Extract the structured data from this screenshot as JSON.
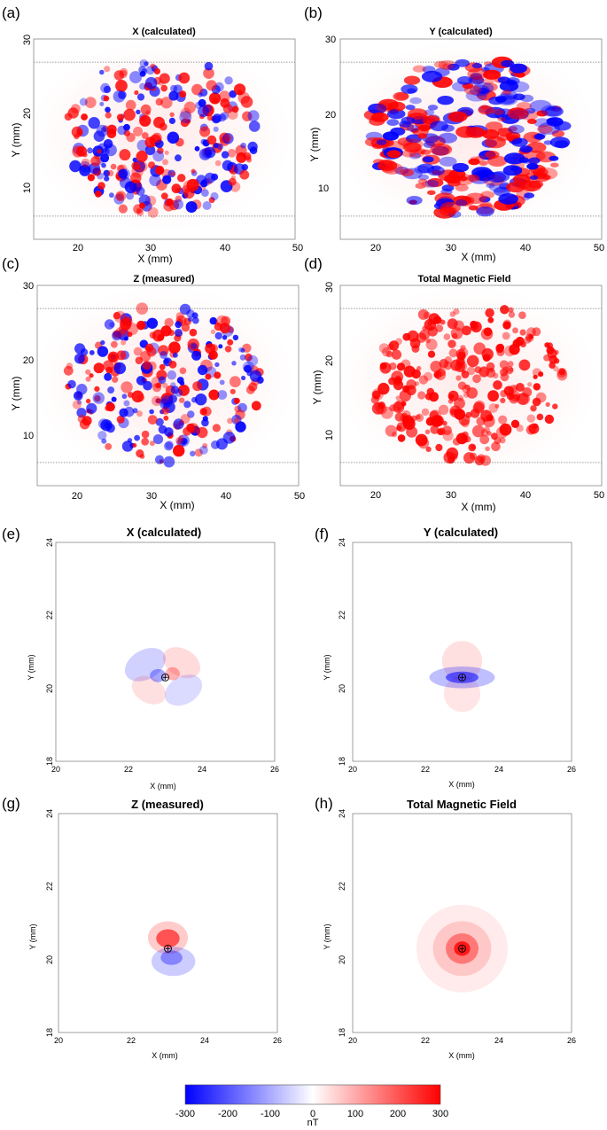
{
  "colorbar": {
    "min": -300,
    "max": 300,
    "ticks": [
      "-300",
      "-200",
      "-100",
      "0",
      "100",
      "200",
      "300"
    ],
    "unit": "nT",
    "colors": {
      "negative": "#0000ff",
      "zero": "#ffffff",
      "positive": "#ff0000"
    }
  },
  "chart_data": [
    {
      "type": "heatmap",
      "letter": "(a)",
      "title": "X (calculated)",
      "xlabel": "X (mm)",
      "ylabel": "Y (mm)",
      "xlim": [
        15,
        50
      ],
      "ylim": [
        4,
        30
      ],
      "xticks": [
        "20",
        "30",
        "40",
        "50"
      ],
      "yticks": [
        "10",
        "20",
        "30"
      ],
      "guide_lines_y": [
        7,
        27
      ],
      "pattern": "scattered",
      "field": "sample map"
    },
    {
      "type": "heatmap",
      "letter": "(b)",
      "title": "Y (calculated)",
      "xlabel": "X (mm)",
      "ylabel": "Y (mm)",
      "xlim": [
        15,
        50
      ],
      "ylim": [
        4,
        30
      ],
      "xticks": [
        "20",
        "30",
        "40",
        "50"
      ],
      "yticks": [
        "10",
        "20",
        "30"
      ],
      "guide_lines_y": [
        7,
        27
      ],
      "pattern": "scattered",
      "field": "sample map"
    },
    {
      "type": "heatmap",
      "letter": "(c)",
      "title": "Z (measured)",
      "xlabel": "X (mm)",
      "ylabel": "Y (mm)",
      "xlim": [
        15,
        50
      ],
      "ylim": [
        4,
        30
      ],
      "xticks": [
        "20",
        "30",
        "40",
        "50"
      ],
      "yticks": [
        "10",
        "20",
        "30"
      ],
      "guide_lines_y": [
        7,
        27
      ],
      "pattern": "scattered",
      "field": "sample map"
    },
    {
      "type": "heatmap",
      "letter": "(d)",
      "title": "Total Magnetic Field",
      "xlabel": "X (mm)",
      "ylabel": "Y (mm)",
      "xlim": [
        15,
        50
      ],
      "ylim": [
        4,
        30
      ],
      "xticks": [
        "20",
        "30",
        "40",
        "50"
      ],
      "yticks": [
        "10",
        "20",
        "30"
      ],
      "guide_lines_y": [
        7,
        27
      ],
      "pattern": "positive",
      "field": "sample map"
    },
    {
      "type": "heatmap",
      "letter": "(e)",
      "title": "X (calculated)",
      "xlabel": "X (mm)",
      "ylabel": "Y (mm)",
      "xlim": [
        20,
        26
      ],
      "ylim": [
        18,
        24
      ],
      "xticks": [
        "20",
        "22",
        "24",
        "26"
      ],
      "yticks": [
        "18",
        "20",
        "22",
        "24"
      ],
      "dipole": [
        23,
        20.3
      ],
      "pattern": "quadrupole"
    },
    {
      "type": "heatmap",
      "letter": "(f)",
      "title": "Y (calculated)",
      "xlabel": "X (mm)",
      "ylabel": "Y (mm)",
      "xlim": [
        20,
        26
      ],
      "ylim": [
        18,
        24
      ],
      "xticks": [
        "20",
        "22",
        "24",
        "26"
      ],
      "yticks": [
        "18",
        "20",
        "22",
        "24"
      ],
      "dipole": [
        23,
        20.3
      ],
      "pattern": "y-dipole"
    },
    {
      "type": "heatmap",
      "letter": "(g)",
      "title": "Z (measured)",
      "xlabel": "X (mm)",
      "ylabel": "Y (mm)",
      "xlim": [
        20,
        26
      ],
      "ylim": [
        18,
        24
      ],
      "xticks": [
        "20",
        "22",
        "24",
        "26"
      ],
      "yticks": [
        "18",
        "20",
        "22",
        "24"
      ],
      "dipole": [
        23,
        20.3
      ],
      "pattern": "z-dipole"
    },
    {
      "type": "heatmap",
      "letter": "(h)",
      "title": "Total Magnetic Field",
      "xlabel": "X (mm)",
      "ylabel": "Y (mm)",
      "xlim": [
        20,
        26
      ],
      "ylim": [
        18,
        24
      ],
      "xticks": [
        "20",
        "22",
        "24",
        "26"
      ],
      "yticks": [
        "18",
        "20",
        "22",
        "24"
      ],
      "dipole": [
        23,
        20.3
      ],
      "pattern": "total"
    }
  ]
}
